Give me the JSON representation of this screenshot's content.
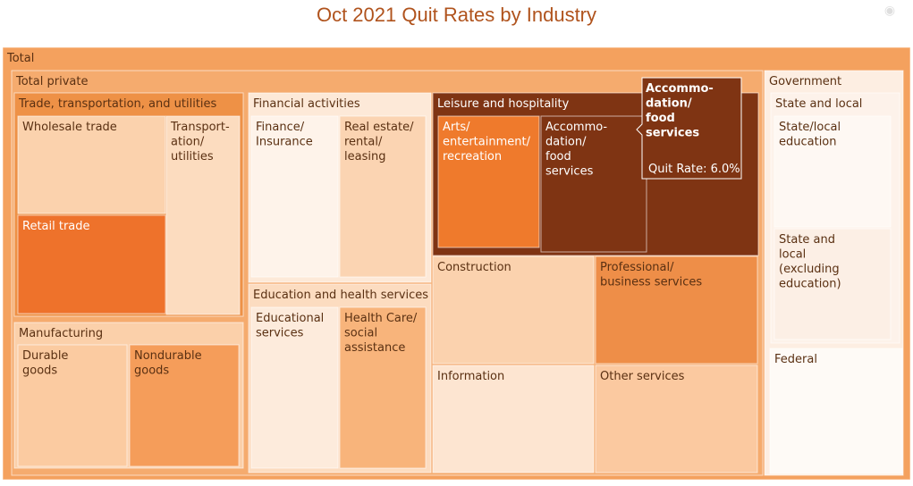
{
  "title": "Oct 2021 Quit Rates by Industry",
  "toolbar": {
    "camera_icon": "camera-icon"
  },
  "colors": {
    "background": "#ffffff",
    "text_dark": "#5a3012",
    "text_light": "#ffffff",
    "title": "#b0531d",
    "tooltip_bg": "#7f3413"
  },
  "chart_data": {
    "type": "treemap",
    "title": "Oct 2021 Quit Rates by Industry",
    "nodes": [
      {
        "id": "total",
        "label": "Total",
        "parent": "",
        "color": "#f4a15e"
      },
      {
        "id": "total-private",
        "label": "Total private",
        "parent": "total",
        "color": "#f5ab6e"
      },
      {
        "id": "ttu",
        "label": "Trade, transportation, and utilities",
        "parent": "total-private",
        "color": "#ee9146"
      },
      {
        "id": "wholesale",
        "label": "Wholesale trade",
        "parent": "ttu",
        "color": "#fbd2ad"
      },
      {
        "id": "retail",
        "label": "Retail trade",
        "parent": "ttu",
        "color": "#ee722b",
        "light_text": true
      },
      {
        "id": "transport",
        "label": "Transport-\nation/\nutilities",
        "parent": "ttu",
        "color": "#fcdcbf"
      },
      {
        "id": "financial",
        "label": "Financial activities",
        "parent": "total-private",
        "color": "#fde9d8"
      },
      {
        "id": "finance-ins",
        "label": "Finance/\nInsurance",
        "parent": "financial",
        "color": "#fef3ea"
      },
      {
        "id": "real-estate",
        "label": "Real estate/\nrental/\nleasing",
        "parent": "financial",
        "color": "#fbd4b2"
      },
      {
        "id": "edu-health",
        "label": "Education and health services",
        "parent": "total-private",
        "color": "#fcdcc0"
      },
      {
        "id": "edu-services",
        "label": "Educational\nservices",
        "parent": "edu-health",
        "color": "#fdebdc"
      },
      {
        "id": "health",
        "label": "Health Care/\nsocial\nassistance",
        "parent": "edu-health",
        "color": "#f8b47b"
      },
      {
        "id": "manufacturing",
        "label": "Manufacturing",
        "parent": "total-private",
        "color": "#fbd0aa"
      },
      {
        "id": "durable",
        "label": "Durable\ngoods",
        "parent": "manufacturing",
        "color": "#fbcba1"
      },
      {
        "id": "nondurable",
        "label": "Nondurable\ngoods",
        "parent": "manufacturing",
        "color": "#f59d5a"
      },
      {
        "id": "leisure",
        "label": "Leisure and hospitality",
        "parent": "total-private",
        "color": "#7f3413",
        "light_text": true
      },
      {
        "id": "arts",
        "label": "Arts/\nentertainment/\nrecreation",
        "parent": "leisure",
        "color": "#ef7a2c",
        "light_text": true
      },
      {
        "id": "accommodation",
        "label": "Accommo-\ndation/\nfood\nservices",
        "parent": "leisure",
        "color": "#7f3413",
        "light_text": true,
        "quit_rate": 6.0
      },
      {
        "id": "construction",
        "label": "Construction",
        "parent": "total-private",
        "color": "#fbd2ae"
      },
      {
        "id": "professional",
        "label": "Professional/\nbusiness services",
        "parent": "total-private",
        "color": "#ee8e48"
      },
      {
        "id": "information",
        "label": "Information",
        "parent": "total-private",
        "color": "#fde5d1"
      },
      {
        "id": "other-services",
        "label": "Other services",
        "parent": "total-private",
        "color": "#fbc9a0"
      },
      {
        "id": "government",
        "label": "Government",
        "parent": "total",
        "color": "#fdeee2"
      },
      {
        "id": "state-local",
        "label": "State and local",
        "parent": "government",
        "color": "#fdf2ea"
      },
      {
        "id": "state-local-edu",
        "label": "State/local\neducation",
        "parent": "state-local",
        "color": "#fef8f3"
      },
      {
        "id": "state-local-nonedu",
        "label": "State and\nlocal\n(excluding\neducation)",
        "parent": "state-local",
        "color": "#fcefe5"
      },
      {
        "id": "federal",
        "label": "Federal",
        "parent": "government",
        "color": "#fefaf6"
      }
    ],
    "tooltip": {
      "target": "accommodation",
      "label": "Accommo-\ndation/\nfood\nservices",
      "text": "Quit Rate: 6.0%"
    }
  }
}
